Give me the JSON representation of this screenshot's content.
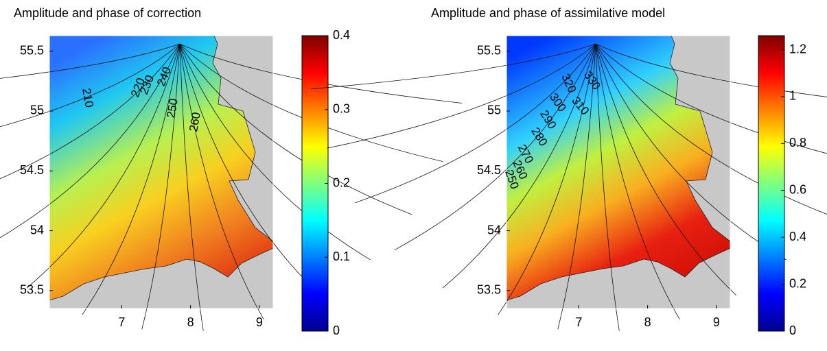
{
  "chart_data": [
    {
      "type": "contour",
      "title": "Amplitude and phase of correction",
      "colormap": "jet",
      "xlim": [
        5.95,
        9.2
      ],
      "xticks": [
        7,
        8,
        9
      ],
      "ylim": [
        53.35,
        55.63
      ],
      "yticks": [
        53.5,
        54,
        54.5,
        55,
        55.5
      ],
      "clim": [
        0,
        0.4
      ],
      "cticks": [
        0,
        0.1,
        0.2,
        0.3,
        0.4
      ],
      "contour_labels": [
        210,
        220,
        230,
        240,
        250,
        260
      ]
    },
    {
      "type": "contour",
      "title": "Amplitude and phase of assimilative model",
      "colormap": "jet",
      "xlim": [
        5.95,
        9.2
      ],
      "xticks": [
        7,
        8,
        9
      ],
      "ylim": [
        53.35,
        55.63
      ],
      "yticks": [
        53.5,
        54,
        54.5,
        55,
        55.5
      ],
      "clim": [
        0,
        1.26
      ],
      "cticks": [
        0,
        0.2,
        0.4,
        0.6,
        0.8,
        1,
        1.2
      ],
      "contour_labels": [
        330,
        320,
        310,
        300,
        290,
        280,
        270,
        260,
        250
      ]
    }
  ]
}
